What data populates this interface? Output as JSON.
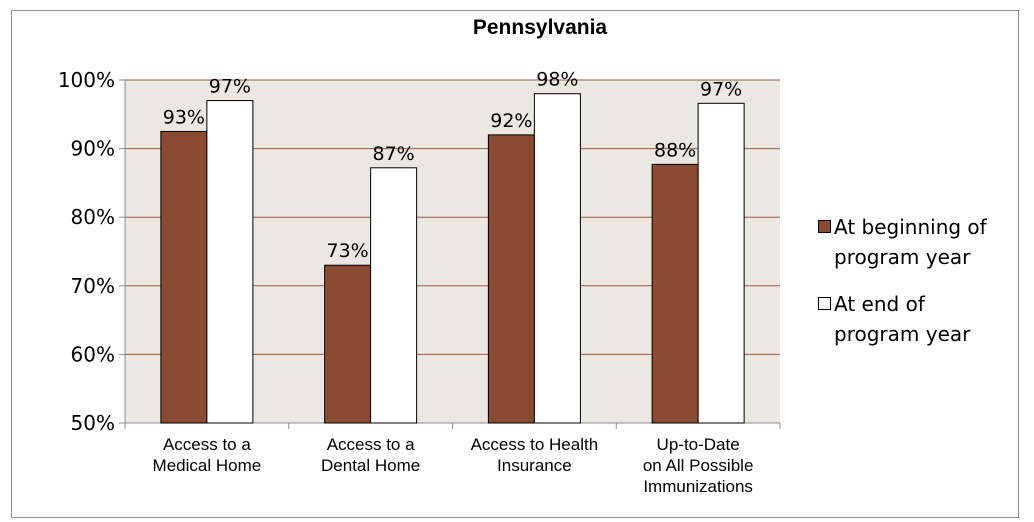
{
  "chart_data": {
    "type": "bar",
    "title": "Pennsylvania",
    "categories": [
      [
        "Access to a",
        "Medical Home"
      ],
      [
        "Access to a",
        "Dental Home"
      ],
      [
        "Access to Health",
        "Insurance"
      ],
      [
        "Up-to-Date",
        "on All Possible",
        "Immunizations"
      ]
    ],
    "series": [
      {
        "name": "At beginning of program year",
        "values": [
          92.5,
          73.0,
          92.0,
          87.7
        ],
        "labels": [
          "93%",
          "73%",
          "92%",
          "88%"
        ],
        "color": "#8b4a32"
      },
      {
        "name": "At end of program year",
        "values": [
          97.0,
          87.2,
          98.0,
          96.6
        ],
        "labels": [
          "97%",
          "87%",
          "98%",
          "97%"
        ],
        "color": "#ffffff"
      }
    ],
    "yticks": [
      "50%",
      "60%",
      "70%",
      "80%",
      "90%",
      "100%"
    ],
    "ylim": [
      50,
      100
    ],
    "grid": true,
    "plot_background": "#ebe7e1",
    "gridline_color": "#9b5a4a",
    "legend_position": "right"
  }
}
